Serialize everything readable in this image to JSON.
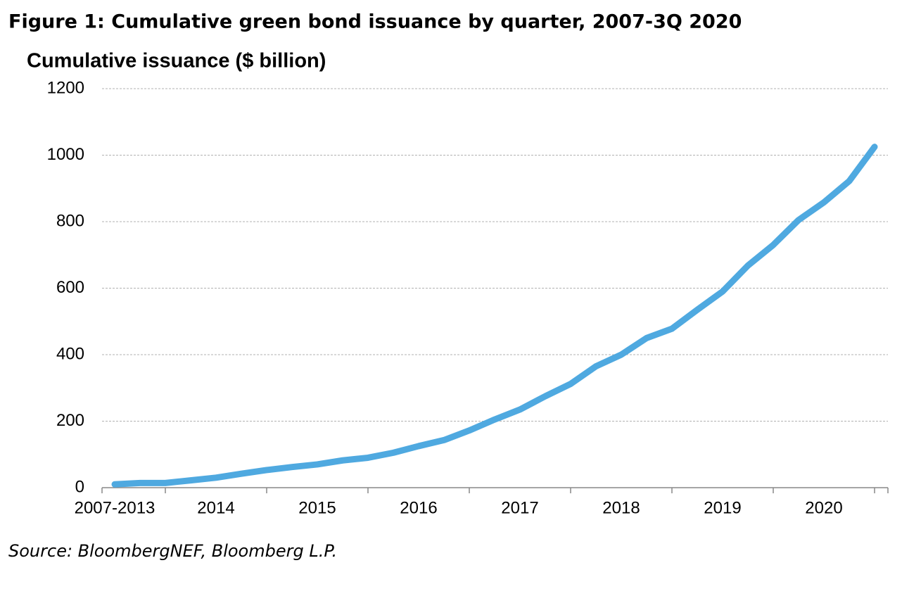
{
  "chart_data": {
    "type": "line",
    "title": "Figure 1: Cumulative green bond issuance by quarter, 2007-3Q 2020",
    "y_label": "Cumulative issuance ($ billion)",
    "source": "Source: BloombergNEF, Bloomberg L.P.",
    "categories": [
      "2007-2013",
      null,
      null,
      null,
      "2014",
      null,
      null,
      null,
      "2015",
      null,
      null,
      null,
      "2016",
      null,
      null,
      null,
      "2017",
      null,
      null,
      null,
      "2018",
      null,
      null,
      null,
      "2019",
      null,
      null,
      null,
      "2020",
      null,
      null
    ],
    "series": [
      {
        "name": "Cumulative issuance",
        "color": "#4fa9e0",
        "values": [
          10,
          14,
          14,
          22,
          30,
          42,
          53,
          62,
          70,
          82,
          90,
          105,
          125,
          143,
          172,
          205,
          235,
          275,
          312,
          365,
          400,
          450,
          478,
          535,
          590,
          668,
          730,
          805,
          858,
          922,
          1025
        ]
      }
    ],
    "ylim": [
      0,
      1200
    ],
    "yticks": [
      0,
      200,
      400,
      600,
      800,
      1000,
      1200
    ],
    "grid": true
  }
}
